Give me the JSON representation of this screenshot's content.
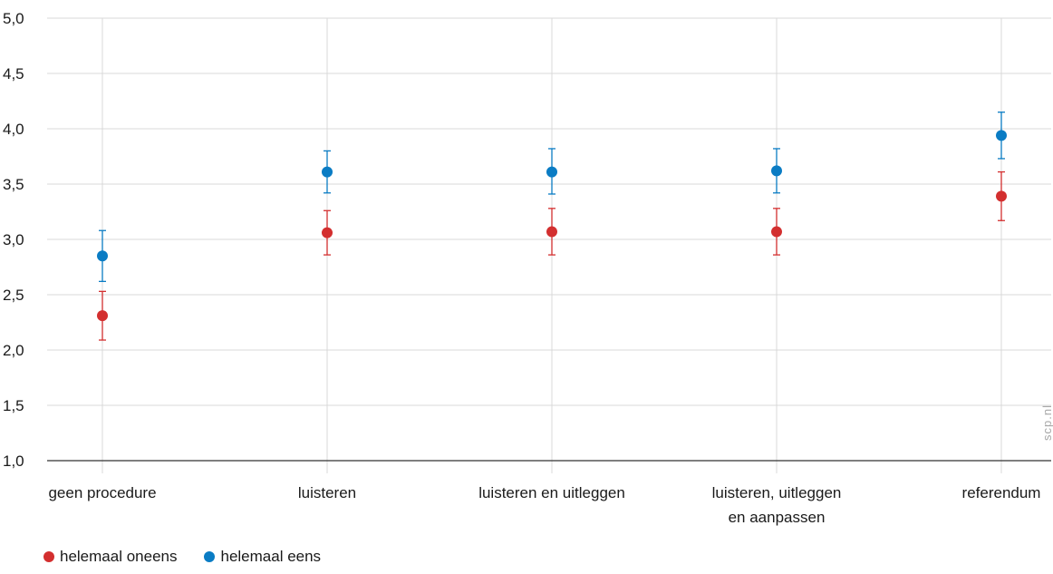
{
  "chart_data": {
    "type": "scatter",
    "title": "",
    "xlabel": "",
    "ylabel": "",
    "categories": [
      "geen procedure",
      "luisteren",
      "luisteren en uitleggen",
      [
        "luisteren, uitleggen",
        "en aanpassen"
      ],
      "referendum"
    ],
    "ylim": [
      1.0,
      5.0
    ],
    "yticks": [
      "1,0",
      "1,5",
      "2,0",
      "2,5",
      "3,0",
      "3,5",
      "4,0",
      "4,5",
      "5,0"
    ],
    "ytick_values": [
      1.0,
      1.5,
      2.0,
      2.5,
      3.0,
      3.5,
      4.0,
      4.5,
      5.0
    ],
    "grid": true,
    "legend_position": "bottom-left",
    "series": [
      {
        "name": "helemaal oneens",
        "color": "#d32f2f",
        "values": [
          2.31,
          3.06,
          3.07,
          3.07,
          3.39
        ],
        "lower": [
          2.09,
          2.86,
          2.86,
          2.86,
          3.17
        ],
        "upper": [
          2.53,
          3.26,
          3.28,
          3.28,
          3.61
        ]
      },
      {
        "name": "helemaal eens",
        "color": "#0a7cc4",
        "values": [
          2.85,
          3.61,
          3.61,
          3.62,
          3.94
        ],
        "lower": [
          2.62,
          3.42,
          3.41,
          3.42,
          3.73
        ],
        "upper": [
          3.08,
          3.8,
          3.82,
          3.82,
          4.15
        ]
      }
    ]
  },
  "watermark": "scp.nl"
}
